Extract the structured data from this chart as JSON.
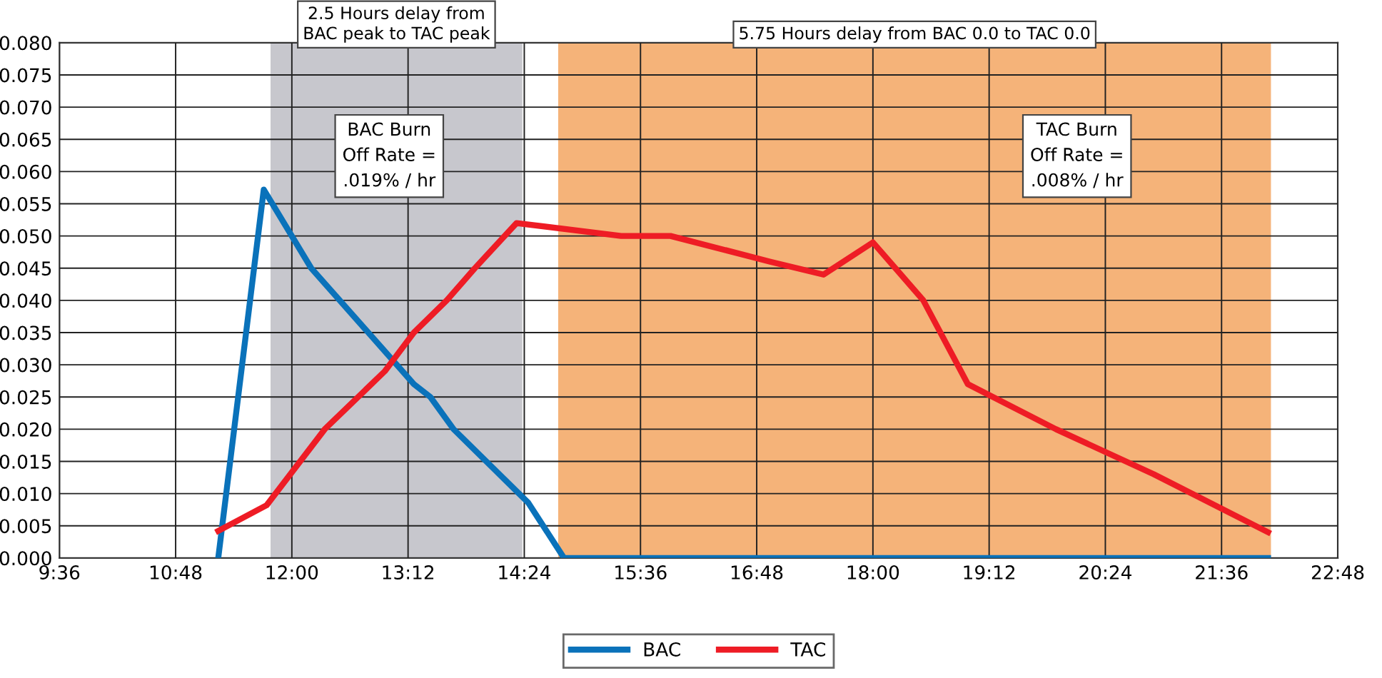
{
  "chart_data": {
    "type": "line",
    "series": [
      {
        "name": "BAC",
        "color": "#0a72ba",
        "x": [
          11.24,
          11.71,
          12.2,
          13.26,
          13.43,
          13.67,
          14.44,
          14.81,
          22.08
        ],
        "values": [
          0,
          0.0572,
          0.045,
          0.027,
          0.025,
          0.02,
          0.0086,
          0,
          0
        ]
      },
      {
        "name": "TAC",
        "color": "#ee1c25",
        "x": [
          11.24,
          11.74,
          12.34,
          12.96,
          13.26,
          13.6,
          13.89,
          14.32,
          15.4,
          15.91,
          16.94,
          17.49,
          18.0,
          18.52,
          18.98,
          19.89,
          20.9,
          22.08
        ],
        "values": [
          0.0042,
          0.0082,
          0.02,
          0.029,
          0.035,
          0.04,
          0.045,
          0.052,
          0.05,
          0.05,
          0.046,
          0.044,
          0.049,
          0.04,
          0.027,
          0.02,
          0.013,
          0.004
        ]
      }
    ],
    "xlim": [
      9.6,
      22.8
    ],
    "xticks": [
      {
        "value": 9.6,
        "label": "9:36"
      },
      {
        "value": 10.8,
        "label": "10:48"
      },
      {
        "value": 12.0,
        "label": "12:00"
      },
      {
        "value": 13.2,
        "label": "13:12"
      },
      {
        "value": 14.4,
        "label": "14:24"
      },
      {
        "value": 15.6,
        "label": "15:36"
      },
      {
        "value": 16.8,
        "label": "16:48"
      },
      {
        "value": 18.0,
        "label": "18:00"
      },
      {
        "value": 19.2,
        "label": "19:12"
      },
      {
        "value": 20.4,
        "label": "20:24"
      },
      {
        "value": 21.6,
        "label": "21:36"
      },
      {
        "value": 22.8,
        "label": "22:48"
      }
    ],
    "ylim": [
      0,
      0.08
    ],
    "yticks": [
      {
        "value": 0,
        "label": "0.000"
      },
      {
        "value": 0.005,
        "label": "0.005"
      },
      {
        "value": 0.01,
        "label": "0.010"
      },
      {
        "value": 0.015,
        "label": "0.015"
      },
      {
        "value": 0.02,
        "label": "0.020"
      },
      {
        "value": 0.025,
        "label": "0.025"
      },
      {
        "value": 0.03,
        "label": "0.030"
      },
      {
        "value": 0.035,
        "label": "0.035"
      },
      {
        "value": 0.04,
        "label": "0.040"
      },
      {
        "value": 0.045,
        "label": "0.045"
      },
      {
        "value": 0.05,
        "label": "0.050"
      },
      {
        "value": 0.055,
        "label": "0.055"
      },
      {
        "value": 0.06,
        "label": "0.060"
      },
      {
        "value": 0.065,
        "label": "0.065"
      },
      {
        "value": 0.07,
        "label": "0.070"
      },
      {
        "value": 0.075,
        "label": "0.075"
      },
      {
        "value": 0.08,
        "label": "0.080"
      }
    ],
    "bands": [
      {
        "axis": "x",
        "from": 11.78,
        "to": 14.38,
        "label": "2.5 Hours delay from\nBAC peak to TAC peak",
        "color": "#b4b4bc"
      },
      {
        "axis": "x",
        "from": 14.75,
        "to": 22.11,
        "label": "5.75 Hours delay from BAC 0.0 to TAC 0.0",
        "color": "#f19a4c"
      }
    ],
    "annotations": [
      "BAC Burn\nOff Rate =\n.019% / hr",
      "TAC Burn\nOff Rate =\n.008% / hr"
    ],
    "grid": true,
    "legend": "bottom",
    "marker": "none",
    "line_style": "solid"
  }
}
